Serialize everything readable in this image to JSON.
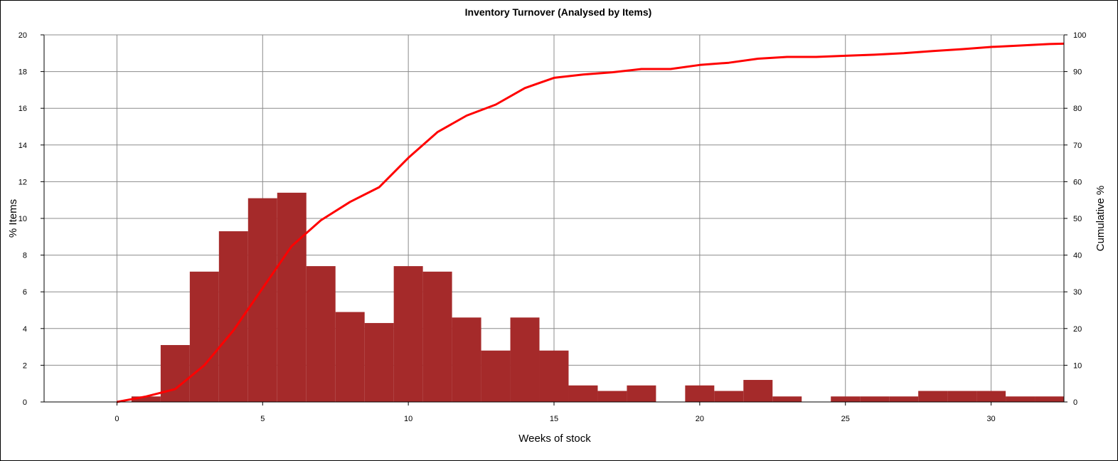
{
  "chart_data": {
    "type": "bar",
    "title": "Inventory Turnover (Analysed by Items)",
    "xlabel": "Weeks of stock",
    "ylabel": "% Items",
    "y2label": "Cumulative %",
    "xlim": [
      -2.5,
      32.5
    ],
    "ylim": [
      0,
      20
    ],
    "y2lim": [
      0,
      100
    ],
    "xticks": [
      0,
      5,
      10,
      15,
      20,
      25,
      30
    ],
    "yticks": [
      0,
      2,
      4,
      6,
      8,
      10,
      12,
      14,
      16,
      18,
      20
    ],
    "y2ticks": [
      0,
      10,
      20,
      30,
      40,
      50,
      60,
      70,
      80,
      90,
      100
    ],
    "grid": true,
    "series": [
      {
        "name": "% Items",
        "type": "bar",
        "color": "#a52a2a",
        "x": [
          1,
          2,
          3,
          4,
          5,
          6,
          7,
          8,
          9,
          10,
          11,
          12,
          13,
          14,
          15,
          16,
          17,
          18,
          19,
          20,
          21,
          22,
          23,
          24,
          25,
          26,
          27,
          28,
          29,
          30,
          31,
          32
        ],
        "values": [
          0.3,
          3.1,
          7.1,
          9.3,
          11.1,
          11.4,
          7.4,
          4.9,
          4.3,
          7.4,
          7.1,
          4.6,
          2.8,
          4.6,
          2.8,
          0.9,
          0.6,
          0.9,
          0,
          0.9,
          0.6,
          1.2,
          0.3,
          0,
          0.3,
          0.3,
          0.3,
          0.6,
          0.6,
          0.6,
          0.3,
          0.3
        ]
      },
      {
        "name": "Cumulative %",
        "type": "line",
        "axis": "right",
        "color": "#ff0000",
        "x": [
          0,
          1,
          2,
          3,
          4,
          5,
          6,
          7,
          8,
          9,
          10,
          11,
          12,
          13,
          14,
          15,
          16,
          17,
          18,
          19,
          20,
          21,
          22,
          23,
          24,
          25,
          26,
          27,
          28,
          29,
          30,
          31,
          32,
          32.5
        ],
        "values": [
          0,
          1.5,
          3.5,
          10,
          19.5,
          31,
          42.5,
          49.5,
          54.5,
          58.5,
          66.5,
          73.5,
          78,
          81,
          85.5,
          88.3,
          89.2,
          89.8,
          90.7,
          90.7,
          91.8,
          92.4,
          93.5,
          94,
          94,
          94.3,
          94.6,
          95,
          95.6,
          96.1,
          96.7,
          97.1,
          97.5,
          97.6
        ]
      }
    ]
  }
}
